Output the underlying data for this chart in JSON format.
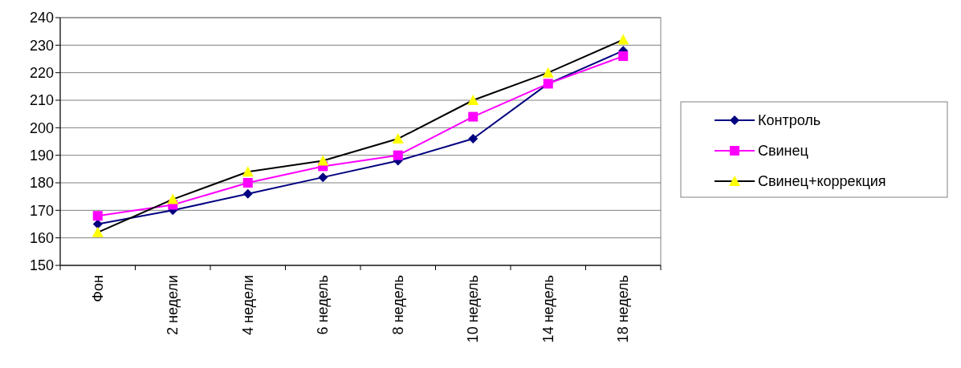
{
  "chart_data": {
    "type": "line",
    "categories": [
      "Фон",
      "2 недели",
      "4 недели",
      "6 недель",
      "8 недель",
      "10 недель",
      "14 недель",
      "18 недель"
    ],
    "series": [
      {
        "name": "Контроль",
        "color": "#000080",
        "marker": "diamond",
        "values": [
          165,
          170,
          176,
          182,
          188,
          196,
          216,
          228
        ]
      },
      {
        "name": "Свинец",
        "color": "#ff00ff",
        "marker": "square",
        "values": [
          168,
          172,
          180,
          186,
          190,
          204,
          216,
          226
        ]
      },
      {
        "name": "Свинец+коррекция",
        "color": "#000000",
        "marker": "triangle",
        "values": [
          162,
          174,
          184,
          188,
          196,
          210,
          220,
          232
        ]
      }
    ],
    "ylim": [
      150,
      240
    ],
    "yticks": [
      150,
      160,
      170,
      180,
      190,
      200,
      210,
      220,
      230,
      240
    ],
    "grid": "y",
    "legend": "right"
  }
}
